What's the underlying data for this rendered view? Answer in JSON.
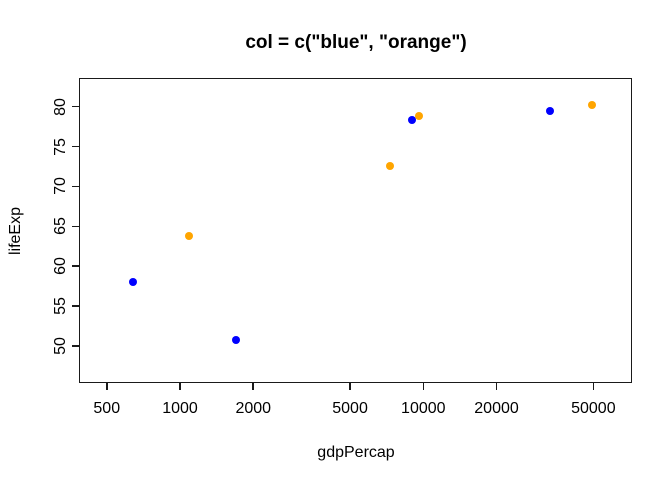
{
  "chart_data": {
    "type": "scatter",
    "title": "col = c(\"blue\", \"orange\")",
    "xlabel": "gdpPercap",
    "ylabel": "lifeExp",
    "x_scale": "log10",
    "y_scale": "linear",
    "grid": "off",
    "legend": "none",
    "x_ticks": [
      500,
      1000,
      2000,
      5000,
      10000,
      20000,
      50000
    ],
    "y_ticks": [
      50,
      55,
      60,
      65,
      70,
      75,
      80
    ],
    "xlim": [
      385,
      72000
    ],
    "ylim": [
      45.4,
      83.6
    ],
    "point_colors": {
      "blue": "#0000FF",
      "orange": "#FFA500"
    },
    "points": [
      {
        "x": 641,
        "y": 58.0,
        "color": "blue"
      },
      {
        "x": 1091,
        "y": 63.8,
        "color": "orange"
      },
      {
        "x": 1704,
        "y": 50.7,
        "color": "blue"
      },
      {
        "x": 7321,
        "y": 72.6,
        "color": "orange"
      },
      {
        "x": 8948,
        "y": 78.3,
        "color": "blue"
      },
      {
        "x": 9645,
        "y": 78.8,
        "color": "orange"
      },
      {
        "x": 33203,
        "y": 79.4,
        "color": "blue"
      },
      {
        "x": 49357,
        "y": 80.2,
        "color": "orange"
      }
    ]
  }
}
